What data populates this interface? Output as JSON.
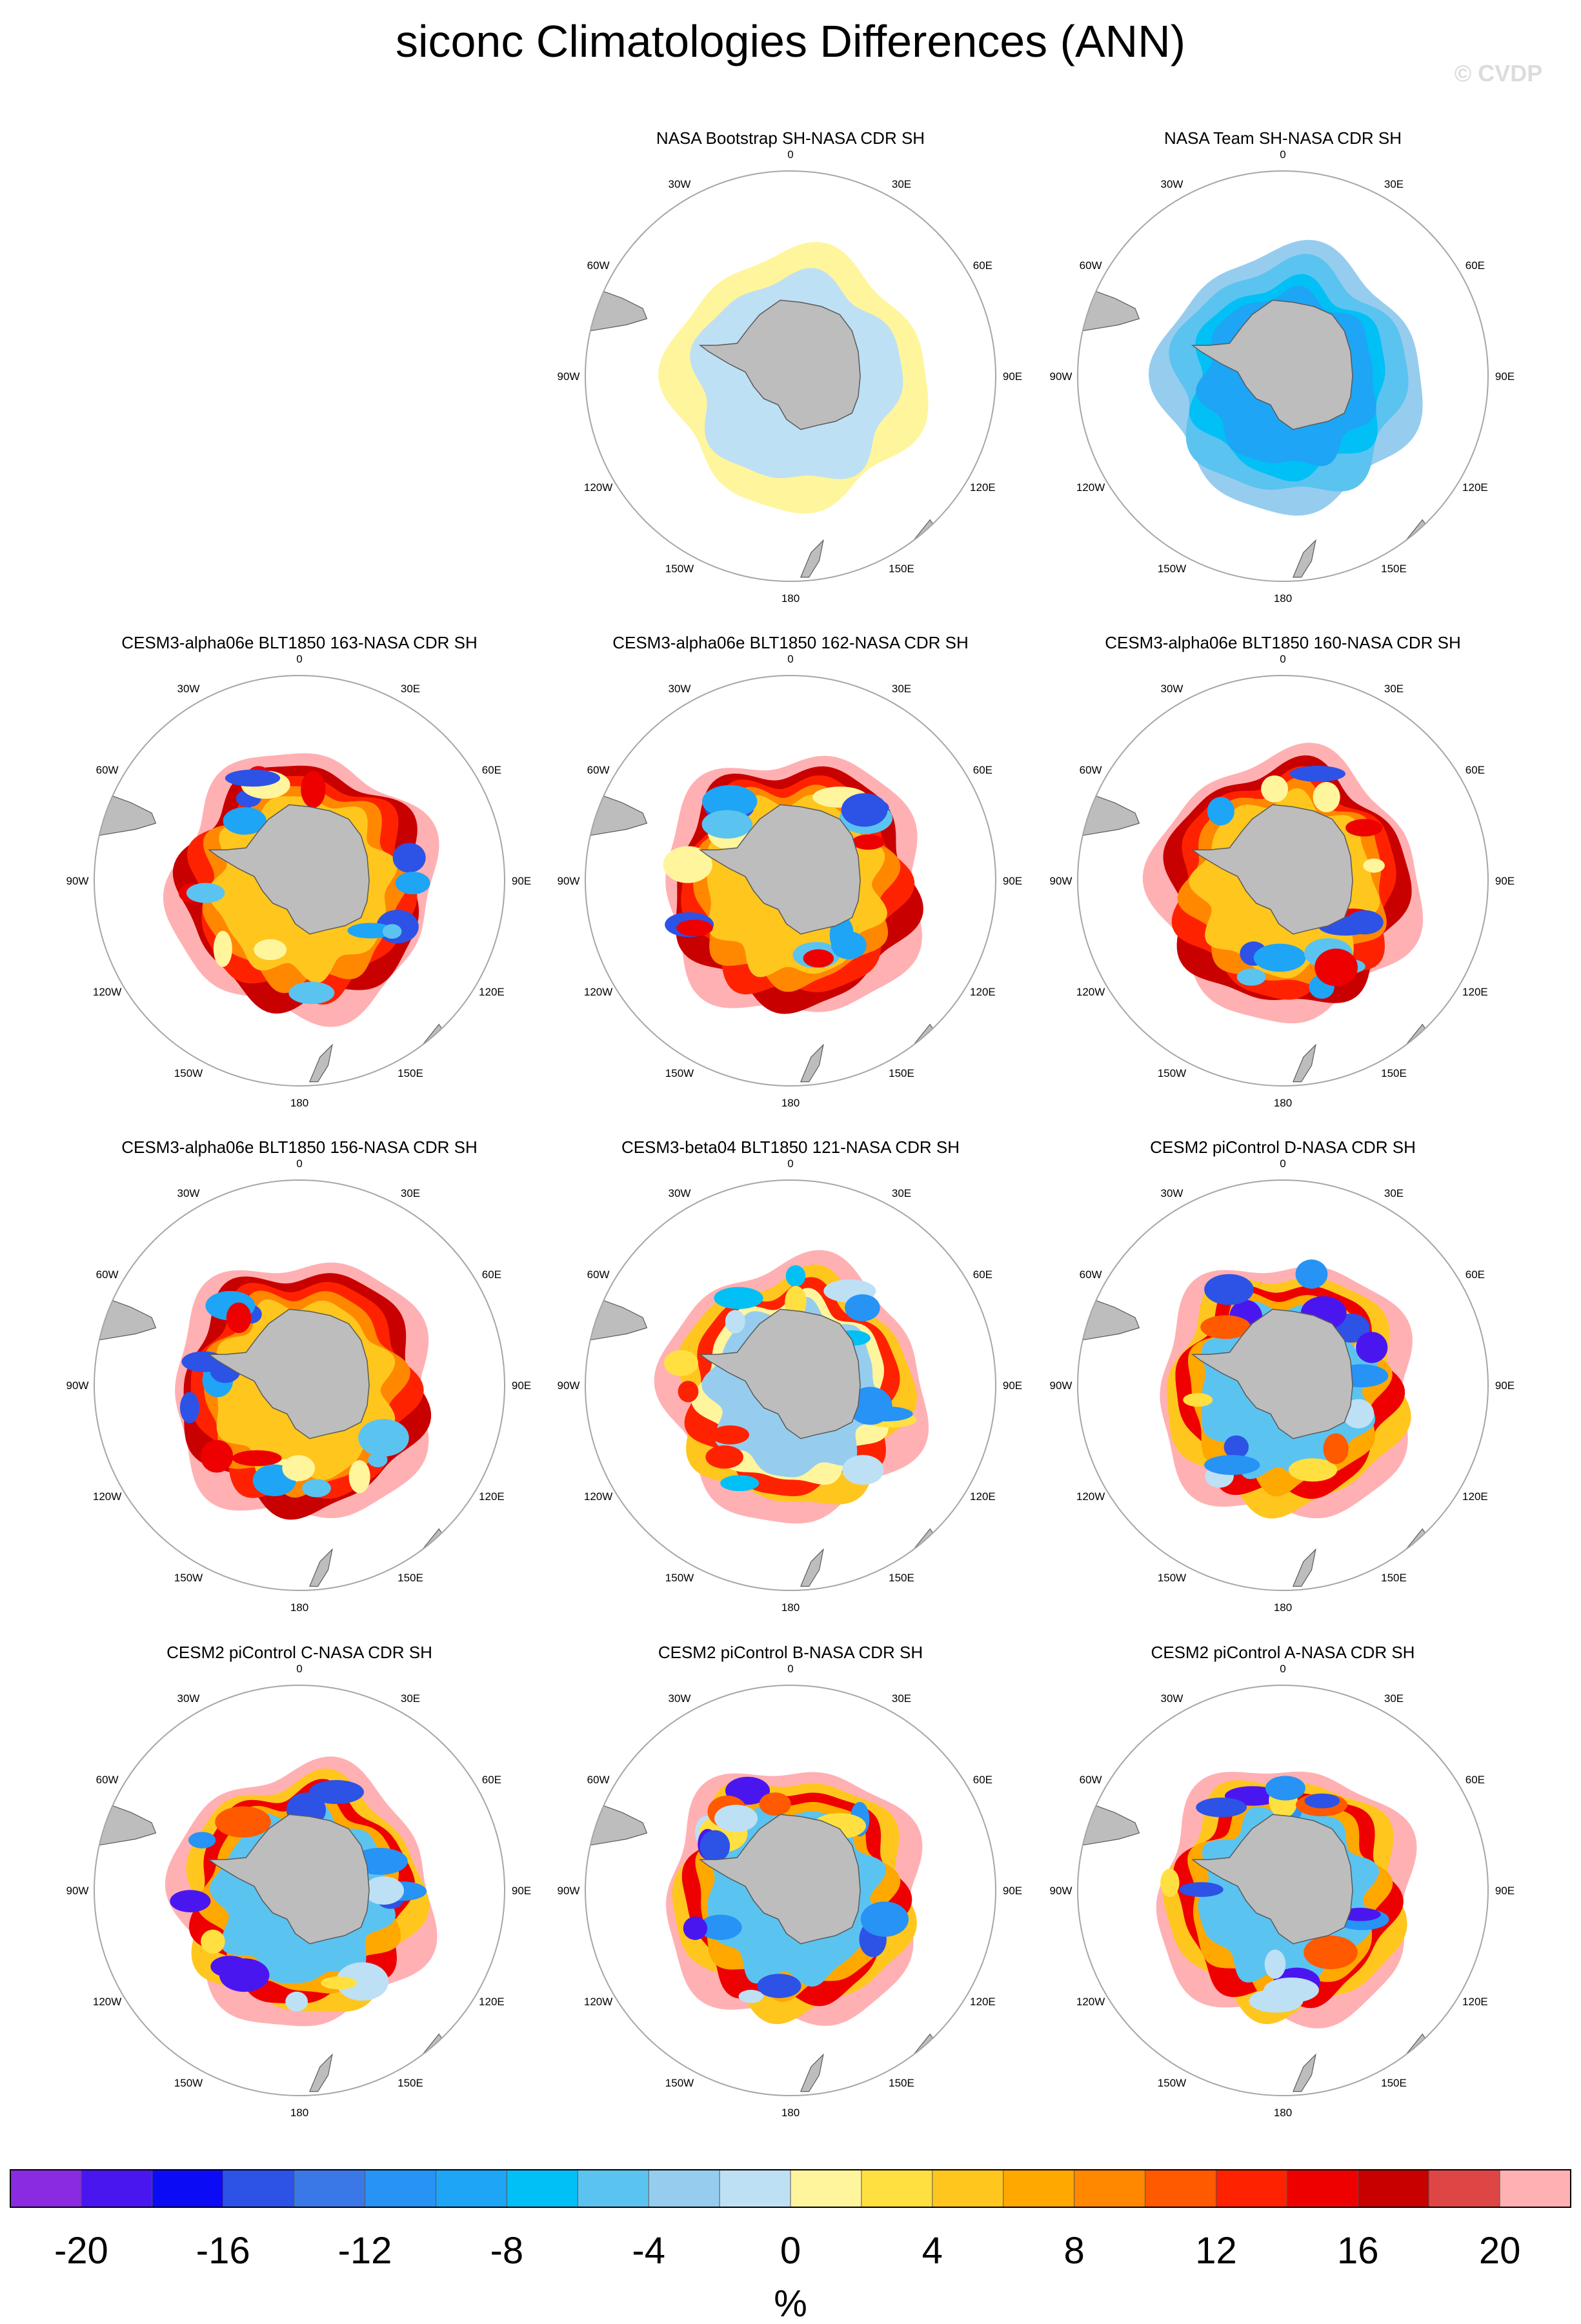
{
  "title": "siconc Climatologies Differences (ANN)",
  "watermark": "© CVDP",
  "panels": [
    {
      "id": "p1",
      "title": "NASA Bootstrap SH-NASA CDR SH",
      "pattern": "bootstrap"
    },
    {
      "id": "p2",
      "title": "NASA Team SH-NASA CDR SH",
      "pattern": "team"
    },
    {
      "id": "p3",
      "title": "CESM3-alpha06e BLT1850 163-NASA CDR SH",
      "pattern": "cesm3",
      "seed": 3
    },
    {
      "id": "p4",
      "title": "CESM3-alpha06e BLT1850 162-NASA CDR SH",
      "pattern": "cesm3",
      "seed": 5
    },
    {
      "id": "p5",
      "title": "CESM3-alpha06e BLT1850 160-NASA CDR SH",
      "pattern": "cesm3",
      "seed": 7
    },
    {
      "id": "p6",
      "title": "CESM3-alpha06e BLT1850 156-NASA CDR SH",
      "pattern": "cesm3",
      "seed": 11
    },
    {
      "id": "p7",
      "title": "CESM3-beta04 BLT1850 121-NASA CDR SH",
      "pattern": "beta",
      "seed": 13
    },
    {
      "id": "p8",
      "title": "CESM2 piControl D-NASA CDR SH",
      "pattern": "cesm2",
      "seed": 17
    },
    {
      "id": "p9",
      "title": "CESM2 piControl C-NASA CDR SH",
      "pattern": "cesm2",
      "seed": 19
    },
    {
      "id": "p10",
      "title": "CESM2 piControl B-NASA CDR SH",
      "pattern": "cesm2",
      "seed": 23
    },
    {
      "id": "p11",
      "title": "CESM2 piControl A-NASA CDR SH",
      "pattern": "cesm2",
      "seed": 29
    }
  ],
  "lon_labels": [
    "0",
    "30E",
    "60E",
    "90E",
    "120E",
    "150E",
    "180",
    "150W",
    "120W",
    "90W",
    "60W",
    "30W"
  ],
  "colorbar": {
    "colors": [
      "#8a2be2",
      "#4a16f0",
      "#0b0bf5",
      "#2d52e6",
      "#3a78e8",
      "#2693f5",
      "#1ea5f5",
      "#00c0f5",
      "#5bc3f0",
      "#96cdee",
      "#bde0f5",
      "#fff59d",
      "#ffe040",
      "#ffc61e",
      "#ffa800",
      "#ff8800",
      "#ff5a00",
      "#ff2200",
      "#ee0000",
      "#c80000",
      "#de4646",
      "#ffb0b3"
    ],
    "tick_labels": [
      "-20",
      "-16",
      "-12",
      "-8",
      "-4",
      "0",
      "4",
      "8",
      "12",
      "16",
      "20"
    ],
    "units": "%"
  },
  "colors": {
    "land": "#bdbdbd",
    "land_edge": "#5a5a5a",
    "ring": "#a6a6a6"
  }
}
